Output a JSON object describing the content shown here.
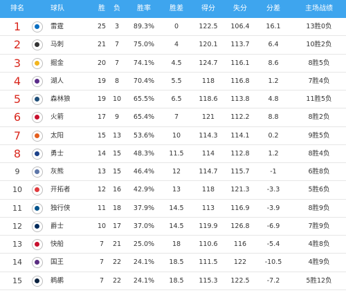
{
  "headers": {
    "rank": "排名",
    "team": "球队",
    "w": "胜",
    "l": "负",
    "pct": "胜率",
    "gb": "胜差",
    "pts": "得分",
    "opp": "失分",
    "diff": "分差",
    "home": "主场战绩"
  },
  "rows": [
    {
      "rank": "1",
      "team": "雷霆",
      "w": "25",
      "l": "3",
      "pct": "89.3%",
      "gb": "0",
      "pts": "122.5",
      "opp": "106.4",
      "diff": "16.1",
      "home": "13胜0负",
      "logo_color": "#0b6fc2"
    },
    {
      "rank": "2",
      "team": "马刺",
      "w": "21",
      "l": "7",
      "pct": "75.0%",
      "gb": "4",
      "pts": "120.1",
      "opp": "113.7",
      "diff": "6.4",
      "home": "10胜2负",
      "logo_color": "#333333"
    },
    {
      "rank": "3",
      "team": "掘金",
      "w": "20",
      "l": "7",
      "pct": "74.1%",
      "gb": "4.5",
      "pts": "124.7",
      "opp": "116.1",
      "diff": "8.6",
      "home": "8胜5负",
      "logo_color": "#f2b51f"
    },
    {
      "rank": "4",
      "team": "湖人",
      "w": "19",
      "l": "8",
      "pct": "70.4%",
      "gb": "5.5",
      "pts": "118",
      "opp": "116.8",
      "diff": "1.2",
      "home": "7胜4负",
      "logo_color": "#5b2c8a"
    },
    {
      "rank": "5",
      "team": "森林狼",
      "w": "19",
      "l": "10",
      "pct": "65.5%",
      "gb": "6.5",
      "pts": "118.6",
      "opp": "113.8",
      "diff": "4.8",
      "home": "11胜5负",
      "logo_color": "#1f4e79"
    },
    {
      "rank": "6",
      "team": "火箭",
      "w": "17",
      "l": "9",
      "pct": "65.4%",
      "gb": "7",
      "pts": "121",
      "opp": "112.2",
      "diff": "8.8",
      "home": "8胜2负",
      "logo_color": "#c8102e"
    },
    {
      "rank": "7",
      "team": "太阳",
      "w": "15",
      "l": "13",
      "pct": "53.6%",
      "gb": "10",
      "pts": "114.3",
      "opp": "114.1",
      "diff": "0.2",
      "home": "9胜5负",
      "logo_color": "#e56020"
    },
    {
      "rank": "8",
      "team": "勇士",
      "w": "14",
      "l": "15",
      "pct": "48.3%",
      "gb": "11.5",
      "pts": "114",
      "opp": "112.8",
      "diff": "1.2",
      "home": "8胜4负",
      "logo_color": "#1d428a"
    },
    {
      "rank": "9",
      "team": "灰熊",
      "w": "13",
      "l": "15",
      "pct": "46.4%",
      "gb": "12",
      "pts": "114.7",
      "opp": "115.7",
      "diff": "-1",
      "home": "6胜8负",
      "logo_color": "#5d76a9"
    },
    {
      "rank": "10",
      "team": "开拓者",
      "w": "12",
      "l": "16",
      "pct": "42.9%",
      "gb": "13",
      "pts": "118",
      "opp": "121.3",
      "diff": "-3.3",
      "home": "5胜6负",
      "logo_color": "#e03a3e"
    },
    {
      "rank": "11",
      "team": "独行侠",
      "w": "11",
      "l": "18",
      "pct": "37.9%",
      "gb": "14.5",
      "pts": "113",
      "opp": "116.9",
      "diff": "-3.9",
      "home": "8胜9负",
      "logo_color": "#00538c"
    },
    {
      "rank": "12",
      "team": "爵士",
      "w": "10",
      "l": "17",
      "pct": "37.0%",
      "gb": "14.5",
      "pts": "119.9",
      "opp": "126.8",
      "diff": "-6.9",
      "home": "7胜9负",
      "logo_color": "#002b5c"
    },
    {
      "rank": "13",
      "team": "快船",
      "w": "7",
      "l": "21",
      "pct": "25.0%",
      "gb": "18",
      "pts": "110.6",
      "opp": "116",
      "diff": "-5.4",
      "home": "4胜8负",
      "logo_color": "#c8102e"
    },
    {
      "rank": "14",
      "team": "国王",
      "w": "7",
      "l": "22",
      "pct": "24.1%",
      "gb": "18.5",
      "pts": "111.5",
      "opp": "122",
      "diff": "-10.5",
      "home": "4胜9负",
      "logo_color": "#5a2d81"
    },
    {
      "rank": "15",
      "team": "鹈鹕",
      "w": "7",
      "l": "22",
      "pct": "24.1%",
      "gb": "18.5",
      "pts": "115.3",
      "opp": "122.5",
      "diff": "-7.2",
      "home": "5胜12负",
      "logo_color": "#0c2340"
    }
  ],
  "colors": {
    "header_bg": "#3ea5ee",
    "header_text": "#ffffff",
    "top_rank": "#d9261c",
    "rest_rank": "#444444"
  }
}
